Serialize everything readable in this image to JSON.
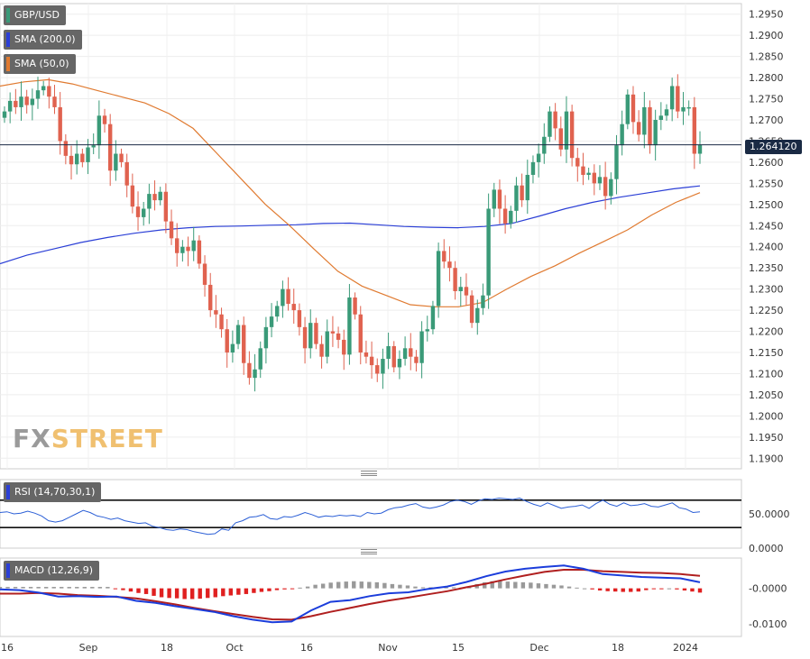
{
  "legends": {
    "pair": "GBP/USD",
    "sma200": "SMA (200,0)",
    "sma50": "SMA (50,0)",
    "rsi": "RSI (14,70,30,1)",
    "macd": "MACD (12,26,9)"
  },
  "current_price_label": "1.264120",
  "watermark": {
    "part1": "FX",
    "part2": "STREET"
  },
  "colors": {
    "up": "#3a9a78",
    "down": "#e0624f",
    "sma200": "#2b3fd6",
    "sma50": "#e07a30",
    "rsi_line": "#2b5fd6",
    "macd_line": "#1b3ddb",
    "signal_line": "#b01f1f",
    "hist_pos": "#999999",
    "hist_neg": "#e02020"
  },
  "chart_data": [
    {
      "type": "candlestick",
      "title": "GBP/USD",
      "x_tick_labels": [
        "16",
        "Sep",
        "18",
        "Oct",
        "16",
        "Nov",
        "15",
        "Dec",
        "18",
        "2024"
      ],
      "y_tick_labels": [
        "1.2950",
        "1.2900",
        "1.2850",
        "1.2800",
        "1.2750",
        "1.2700",
        "1.2650",
        "1.2600",
        "1.2550",
        "1.2500",
        "1.2450",
        "1.2400",
        "1.2350",
        "1.2300",
        "1.2250",
        "1.2200",
        "1.2150",
        "1.2100",
        "1.2050",
        "1.2000",
        "1.1950",
        "1.1900"
      ],
      "ylim": [
        1.1875,
        1.2975
      ],
      "current_price": 1.26412,
      "series": [
        {
          "name": "GBP/USD",
          "close": [
            1.272,
            1.2745,
            1.273,
            1.2755,
            1.2735,
            1.275,
            1.277,
            1.278,
            1.2755,
            1.273,
            1.265,
            1.2615,
            1.2595,
            1.262,
            1.26,
            1.2635,
            1.264,
            1.271,
            1.269,
            1.258,
            1.262,
            1.26,
            1.2545,
            1.2495,
            1.247,
            1.249,
            1.2525,
            1.251,
            1.253,
            1.246,
            1.242,
            1.2385,
            1.24,
            1.239,
            1.2415,
            1.236,
            1.231,
            1.225,
            1.224,
            1.2205,
            1.215,
            1.217,
            1.2215,
            1.2125,
            1.209,
            1.211,
            1.216,
            1.221,
            1.2235,
            1.226,
            1.23,
            1.2265,
            1.225,
            1.221,
            1.216,
            1.222,
            1.217,
            1.214,
            1.22,
            1.2195,
            1.218,
            1.2145,
            1.228,
            1.224,
            1.215,
            1.214,
            1.212,
            1.21,
            1.2135,
            1.2165,
            1.2115,
            1.2135,
            1.216,
            1.214,
            1.2125,
            1.22,
            1.2205,
            1.226,
            1.239,
            1.2365,
            1.235,
            1.2295,
            1.2305,
            1.2285,
            1.222,
            1.2255,
            1.2285,
            1.249,
            1.2535,
            1.249,
            1.2455,
            1.2485,
            1.2545,
            1.251,
            1.257,
            1.26,
            1.262,
            1.266,
            1.272,
            1.268,
            1.263,
            1.272,
            1.261,
            1.259,
            1.257,
            1.2575,
            1.255,
            1.2565,
            1.252,
            1.256,
            1.264,
            1.269,
            1.276,
            1.2695,
            1.2665,
            1.273,
            1.264,
            1.27,
            1.271,
            1.2725,
            1.278,
            1.272,
            1.273,
            1.273,
            1.262,
            1.2641
          ]
        },
        {
          "name": "SMA (200,0)",
          "values": [
            1.236,
            1.238,
            1.2395,
            1.241,
            1.2422,
            1.2432,
            1.244,
            1.2445,
            1.2448,
            1.2449,
            1.2451,
            1.2452,
            1.2455,
            1.2456,
            1.2452,
            1.2448,
            1.2446,
            1.2445,
            1.2448,
            1.2455,
            1.2472,
            1.249,
            1.2505,
            1.2517,
            1.2527,
            1.2537,
            1.2544
          ]
        },
        {
          "name": "SMA (50,0)",
          "values": [
            1.278,
            1.279,
            1.2795,
            1.2785,
            1.277,
            1.2755,
            1.274,
            1.2715,
            1.268,
            1.262,
            1.256,
            1.25,
            1.245,
            1.2395,
            1.2342,
            1.2307,
            1.2285,
            1.2263,
            1.2258,
            1.2258,
            1.2268,
            1.23,
            1.233,
            1.2355,
            1.2385,
            1.2412,
            1.244,
            1.2475,
            1.2505,
            1.2528
          ]
        }
      ]
    },
    {
      "type": "line",
      "title": "RSI (14,70,30,1)",
      "y_tick_labels": [
        "50.0000",
        "0.0000"
      ],
      "ylim": [
        0,
        100
      ],
      "levels": [
        70,
        30
      ],
      "series": [
        {
          "name": "RSI",
          "values": [
            52,
            53,
            50,
            51,
            54,
            51,
            47,
            40,
            38,
            40,
            45,
            50,
            55,
            52,
            47,
            45,
            42,
            44,
            40,
            38,
            36,
            37,
            32,
            30,
            27,
            26,
            28,
            27,
            24,
            22,
            20,
            21,
            28,
            26,
            37,
            40,
            45,
            46,
            49,
            43,
            42,
            46,
            45,
            48,
            52,
            49,
            45,
            47,
            46,
            48,
            47,
            48,
            46,
            52,
            50,
            51,
            56,
            59,
            60,
            63,
            65,
            60,
            58,
            60,
            63,
            68,
            70,
            68,
            64,
            69,
            72,
            71,
            73,
            72,
            71,
            73,
            68,
            64,
            61,
            66,
            62,
            58,
            60,
            61,
            63,
            58,
            65,
            70,
            64,
            61,
            66,
            62,
            63,
            65,
            61,
            60,
            63,
            66,
            59,
            57,
            52,
            53
          ]
        }
      ]
    },
    {
      "type": "bar+line",
      "title": "MACD (12,26,9)",
      "y_tick_labels": [
        "-0.0000",
        "-0.0100"
      ],
      "series": [
        {
          "name": "MACD",
          "values": [
            -0.0003,
            -0.0005,
            -0.0012,
            -0.0023,
            -0.0022,
            -0.0024,
            -0.0023,
            -0.0035,
            -0.0041,
            -0.005,
            -0.0058,
            -0.0066,
            -0.0078,
            -0.0088,
            -0.0095,
            -0.0093,
            -0.0062,
            -0.0038,
            -0.0033,
            -0.0022,
            -0.0014,
            -0.0011,
            -0.0002,
            0.0005,
            0.0018,
            0.0034,
            0.0047,
            0.0055,
            0.006,
            0.0064,
            0.0055,
            0.004,
            0.0036,
            0.0032,
            0.003,
            0.0028,
            0.0017
          ]
        },
        {
          "name": "Signal",
          "values": [
            -0.0015,
            -0.0015,
            -0.0013,
            -0.0015,
            -0.0019,
            -0.0021,
            -0.0024,
            -0.0028,
            -0.0036,
            -0.0045,
            -0.0055,
            -0.0064,
            -0.0072,
            -0.008,
            -0.0087,
            -0.0088,
            -0.0078,
            -0.0066,
            -0.0055,
            -0.0044,
            -0.0034,
            -0.0026,
            -0.0017,
            -0.0008,
            0.0003,
            0.0013,
            0.0025,
            0.0036,
            0.0046,
            0.0052,
            0.0052,
            0.0048,
            0.0046,
            0.0044,
            0.0043,
            0.004,
            0.0035
          ]
        },
        {
          "name": "Histogram",
          "values": [
            0.0004,
            0.0004,
            0.0004,
            0.0004,
            0.0004,
            0.0004,
            0.0004,
            0.0004,
            0.0004,
            0.0004,
            0.0004,
            0.0004,
            0.0004,
            0.0004,
            0.0004,
            -0.0001,
            -0.0005,
            -0.0009,
            -0.0013,
            -0.0016,
            -0.0021,
            -0.0025,
            -0.0027,
            -0.0028,
            -0.003,
            -0.003,
            -0.0029,
            -0.0027,
            -0.0025,
            -0.0022,
            -0.002,
            -0.0018,
            -0.0016,
            -0.0013,
            -0.001,
            -0.0008,
            -0.0005,
            -0.0003,
            -0.0001,
            0.0002,
            0.0005,
            0.001,
            0.0013,
            0.0016,
            0.0018,
            0.0019,
            0.002,
            0.0019,
            0.0018,
            0.0017,
            0.0015,
            0.0012,
            0.001,
            0.0008,
            0.0005,
            0.0003,
            0.0003,
            0.0003,
            0.0003,
            0.0003,
            0.0002,
            0.0003,
            0.0012,
            0.0017,
            0.002,
            0.0021,
            0.0019,
            0.0018,
            0.0017,
            0.0016,
            0.0014,
            0.0012,
            0.001,
            0.0008,
            0.0005,
            0.0002,
            0.0,
            -0.0003,
            -0.0006,
            -0.0008,
            -0.0009,
            -0.001,
            -0.001,
            -0.0009,
            -0.0005,
            -0.0002,
            -0.0001,
            0.0,
            -0.0003,
            -0.0006,
            -0.0009,
            -0.0012
          ]
        }
      ]
    }
  ]
}
